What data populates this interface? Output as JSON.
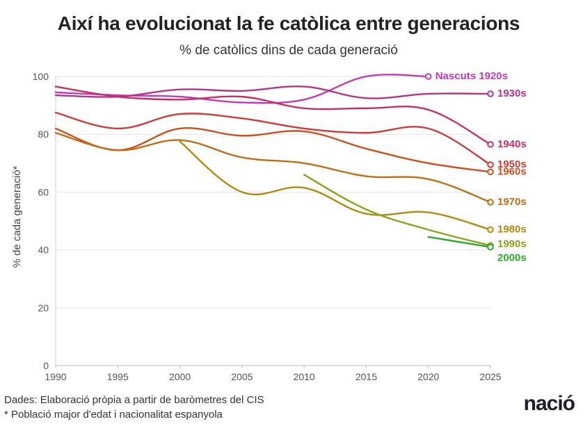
{
  "title": "Així ha evolucionat la fe catòlica entre generacions",
  "subtitle": "% de catòlics dins de cada generació",
  "source": "Dades: Elaboració pròpia a partir de baròmetres del CIS",
  "note": "* Població major d'edat i nacionalitat espanyola",
  "logo": "nació",
  "chart_data": {
    "type": "line",
    "xlabel": "",
    "ylabel": "% de cada generació*",
    "xlim": [
      1990,
      2025
    ],
    "ylim": [
      0,
      100
    ],
    "xticks": [
      1990,
      1995,
      2000,
      2005,
      2010,
      2015,
      2020,
      2025
    ],
    "yticks": [
      0,
      20,
      40,
      60,
      80,
      100
    ],
    "series": [
      {
        "name": "Nascuts 1920s",
        "color": "#c03ab8",
        "x": [
          1990,
          1995,
          2000,
          2005,
          2010,
          2015,
          2020
        ],
        "y": [
          94.5,
          93.5,
          93,
          91,
          92,
          100,
          100
        ]
      },
      {
        "name": "1930s",
        "color": "#b2348f",
        "x": [
          1990,
          1995,
          2000,
          2005,
          2010,
          2015,
          2020,
          2025
        ],
        "y": [
          93.5,
          93,
          95.5,
          95,
          96.5,
          92.5,
          94,
          94
        ]
      },
      {
        "name": "1940s",
        "color": "#c52f61",
        "x": [
          1990,
          1995,
          2000,
          2005,
          2010,
          2015,
          2020,
          2025
        ],
        "y": [
          96.5,
          93,
          92,
          93,
          89,
          89,
          88.5,
          76.5
        ]
      },
      {
        "name": "1950s",
        "color": "#cc3a37",
        "x": [
          1990,
          1995,
          2000,
          2005,
          2010,
          2015,
          2020,
          2025
        ],
        "y": [
          87.5,
          82,
          87,
          85.5,
          82,
          80.5,
          82,
          69.5
        ]
      },
      {
        "name": "1960s",
        "color": "#c9501f",
        "x": [
          1990,
          1995,
          2000,
          2005,
          2010,
          2015,
          2020,
          2025
        ],
        "y": [
          82,
          74.5,
          82,
          79.5,
          81,
          75,
          70,
          67
        ]
      },
      {
        "name": "1970s",
        "color": "#c06c12",
        "x": [
          1990,
          1995,
          2000,
          2005,
          2010,
          2015,
          2020,
          2025
        ],
        "y": [
          80.5,
          74.5,
          78,
          72,
          70,
          65.5,
          64.5,
          56.5
        ]
      },
      {
        "name": "1980s",
        "color": "#ad8b0c",
        "x": [
          2000,
          2005,
          2010,
          2015,
          2020,
          2025
        ],
        "y": [
          77.5,
          60,
          61.5,
          52.5,
          53,
          47
        ]
      },
      {
        "name": "1990s",
        "color": "#8aa21b",
        "x": [
          2010,
          2015,
          2020,
          2025
        ],
        "y": [
          66,
          54,
          47,
          41.5
        ]
      },
      {
        "name": "2000s",
        "color": "#2aab2a",
        "x": [
          2020,
          2025
        ],
        "y": [
          44.5,
          41
        ]
      }
    ]
  }
}
